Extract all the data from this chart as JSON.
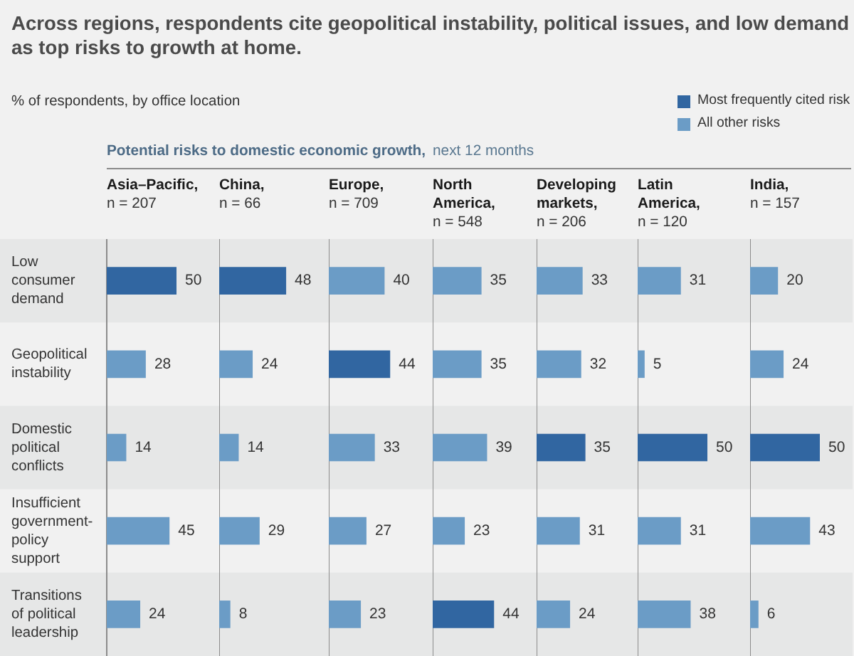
{
  "chart_data": [
    {
      "type": "other",
      "title": "Across regions, respondents cite geopolitical instability, political issues, and low demand as top risks to growth at home.",
      "subtitle": "% of respondents, by office location",
      "annotations": [
        "Potential risks to domestic economic growth,",
        "next 12 months"
      ]
    },
    {
      "type": "bar",
      "orientation": "horizontal",
      "stacked": true,
      "title": "Asia–Pacific,",
      "subtitle": "n = 207",
      "categories": [
        "Low consumer demand",
        "Geopolitical instability",
        "Domestic political conflicts",
        "Insufficient government-policy support",
        "Transitions of political leadership"
      ],
      "series": [
        {
          "name": "Most frequently cited risk",
          "color": "#3166a1",
          "values": [
            50,
            null,
            null,
            null,
            null
          ]
        },
        {
          "name": "All other risks",
          "color": "#6b9cc6",
          "values": [
            null,
            28,
            14,
            45,
            24
          ]
        }
      ],
      "bands": [
        {
          "axis": "y",
          "from": "Low consumer demand",
          "to": "Low consumer demand",
          "color": "#e6e7e7"
        },
        {
          "axis": "y",
          "from": "Domestic political conflicts",
          "to": "Domestic political conflicts",
          "color": "#e6e7e7"
        },
        {
          "axis": "y",
          "from": "Transitions of political leadership",
          "to": "Transitions of political leadership",
          "color": "#e6e7e7"
        }
      ],
      "data_labels": true,
      "tick_labels": "y",
      "legend": "top right"
    },
    {
      "type": "bar",
      "orientation": "horizontal",
      "stacked": true,
      "title": "China,",
      "subtitle": "n = 66",
      "categories": [
        "Low consumer demand",
        "Geopolitical instability",
        "Domestic political conflicts",
        "Insufficient government-policy support",
        "Transitions of political leadership"
      ],
      "series": [
        {
          "name": "Most frequently cited risk",
          "color": "#3166a1",
          "values": [
            48,
            null,
            null,
            null,
            null
          ]
        },
        {
          "name": "All other risks",
          "color": "#6b9cc6",
          "values": [
            null,
            24,
            14,
            29,
            8
          ]
        }
      ],
      "bands": [
        {
          "axis": "y",
          "from": "Low consumer demand",
          "to": "Low consumer demand",
          "color": "#e6e7e7"
        },
        {
          "axis": "y",
          "from": "Domestic political conflicts",
          "to": "Domestic political conflicts",
          "color": "#e6e7e7"
        },
        {
          "axis": "y",
          "from": "Transitions of political leadership",
          "to": "Transitions of political leadership",
          "color": "#e6e7e7"
        }
      ],
      "data_labels": true,
      "tick_labels": false
    },
    {
      "type": "bar",
      "orientation": "horizontal",
      "stacked": true,
      "title": "Europe,",
      "subtitle": "n = 709",
      "categories": [
        "Low consumer demand",
        "Geopolitical instability",
        "Domestic political conflicts",
        "Insufficient government-policy support",
        "Transitions of political leadership"
      ],
      "series": [
        {
          "name": "Most frequently cited risk",
          "color": "#3166a1",
          "values": [
            null,
            44,
            null,
            null,
            null
          ]
        },
        {
          "name": "All other risks",
          "color": "#6b9cc6",
          "values": [
            40,
            null,
            33,
            27,
            23
          ]
        }
      ],
      "bands": [
        {
          "axis": "y",
          "from": "Low consumer demand",
          "to": "Low consumer demand",
          "color": "#e6e7e7"
        },
        {
          "axis": "y",
          "from": "Domestic political conflicts",
          "to": "Domestic political conflicts",
          "color": "#e6e7e7"
        },
        {
          "axis": "y",
          "from": "Transitions of political leadership",
          "to": "Transitions of political leadership",
          "color": "#e6e7e7"
        }
      ],
      "data_labels": true,
      "tick_labels": false
    },
    {
      "type": "bar",
      "orientation": "horizontal",
      "stacked": true,
      "title": "North America,",
      "subtitle": "n = 548",
      "categories": [
        "Low consumer demand",
        "Geopolitical instability",
        "Domestic political conflicts",
        "Insufficient government-policy support",
        "Transitions of political leadership"
      ],
      "series": [
        {
          "name": "Most frequently cited risk",
          "color": "#3166a1",
          "values": [
            null,
            null,
            null,
            null,
            44
          ]
        },
        {
          "name": "All other risks",
          "color": "#6b9cc6",
          "values": [
            35,
            35,
            39,
            23,
            null
          ]
        }
      ],
      "bands": [
        {
          "axis": "y",
          "from": "Low consumer demand",
          "to": "Low consumer demand",
          "color": "#e6e7e7"
        },
        {
          "axis": "y",
          "from": "Domestic political conflicts",
          "to": "Domestic political conflicts",
          "color": "#e6e7e7"
        },
        {
          "axis": "y",
          "from": "Transitions of political leadership",
          "to": "Transitions of political leadership",
          "color": "#e6e7e7"
        }
      ],
      "data_labels": true,
      "tick_labels": false
    },
    {
      "type": "bar",
      "orientation": "horizontal",
      "stacked": true,
      "title": "Developing markets,",
      "subtitle": "n = 206",
      "categories": [
        "Low consumer demand",
        "Geopolitical instability",
        "Domestic political conflicts",
        "Insufficient government-policy support",
        "Transitions of political leadership"
      ],
      "series": [
        {
          "name": "Most frequently cited risk",
          "color": "#3166a1",
          "values": [
            null,
            null,
            35,
            null,
            null
          ]
        },
        {
          "name": "All other risks",
          "color": "#6b9cc6",
          "values": [
            33,
            32,
            null,
            31,
            24
          ]
        }
      ],
      "bands": [
        {
          "axis": "y",
          "from": "Low consumer demand",
          "to": "Low consumer demand",
          "color": "#e6e7e7"
        },
        {
          "axis": "y",
          "from": "Domestic political conflicts",
          "to": "Domestic political conflicts",
          "color": "#e6e7e7"
        },
        {
          "axis": "y",
          "from": "Transitions of political leadership",
          "to": "Transitions of political leadership",
          "color": "#e6e7e7"
        }
      ],
      "data_labels": true,
      "tick_labels": false
    },
    {
      "type": "bar",
      "orientation": "horizontal",
      "stacked": true,
      "title": "Latin America,",
      "subtitle": "n = 120",
      "categories": [
        "Low consumer demand",
        "Geopolitical instability",
        "Domestic political conflicts",
        "Insufficient government-policy support",
        "Transitions of political leadership"
      ],
      "series": [
        {
          "name": "Most frequently cited risk",
          "color": "#3166a1",
          "values": [
            null,
            null,
            50,
            null,
            null
          ]
        },
        {
          "name": "All other risks",
          "color": "#6b9cc6",
          "values": [
            31,
            5,
            null,
            31,
            38
          ]
        }
      ],
      "bands": [
        {
          "axis": "y",
          "from": "Low consumer demand",
          "to": "Low consumer demand",
          "color": "#e6e7e7"
        },
        {
          "axis": "y",
          "from": "Domestic political conflicts",
          "to": "Domestic political conflicts",
          "color": "#e6e7e7"
        },
        {
          "axis": "y",
          "from": "Transitions of political leadership",
          "to": "Transitions of political leadership",
          "color": "#e6e7e7"
        }
      ],
      "data_labels": true,
      "tick_labels": false
    },
    {
      "type": "bar",
      "orientation": "horizontal",
      "stacked": true,
      "title": "India,",
      "subtitle": "n = 157",
      "categories": [
        "Low consumer demand",
        "Geopolitical instability",
        "Domestic political conflicts",
        "Insufficient government-policy support",
        "Transitions of political leadership"
      ],
      "series": [
        {
          "name": "Most frequently cited risk",
          "color": "#3166a1",
          "values": [
            null,
            null,
            50,
            null,
            null
          ]
        },
        {
          "name": "All other risks",
          "color": "#6b9cc6",
          "values": [
            20,
            24,
            null,
            43,
            6
          ]
        }
      ],
      "bands": [
        {
          "axis": "y",
          "from": "Low consumer demand",
          "to": "Low consumer demand",
          "color": "#e6e7e7"
        },
        {
          "axis": "y",
          "from": "Domestic political conflicts",
          "to": "Domestic political conflicts",
          "color": "#e6e7e7"
        },
        {
          "axis": "y",
          "from": "Transitions of political leadership",
          "to": "Transitions of political leadership",
          "color": "#e6e7e7"
        }
      ],
      "data_labels": true,
      "tick_labels": false
    }
  ]
}
